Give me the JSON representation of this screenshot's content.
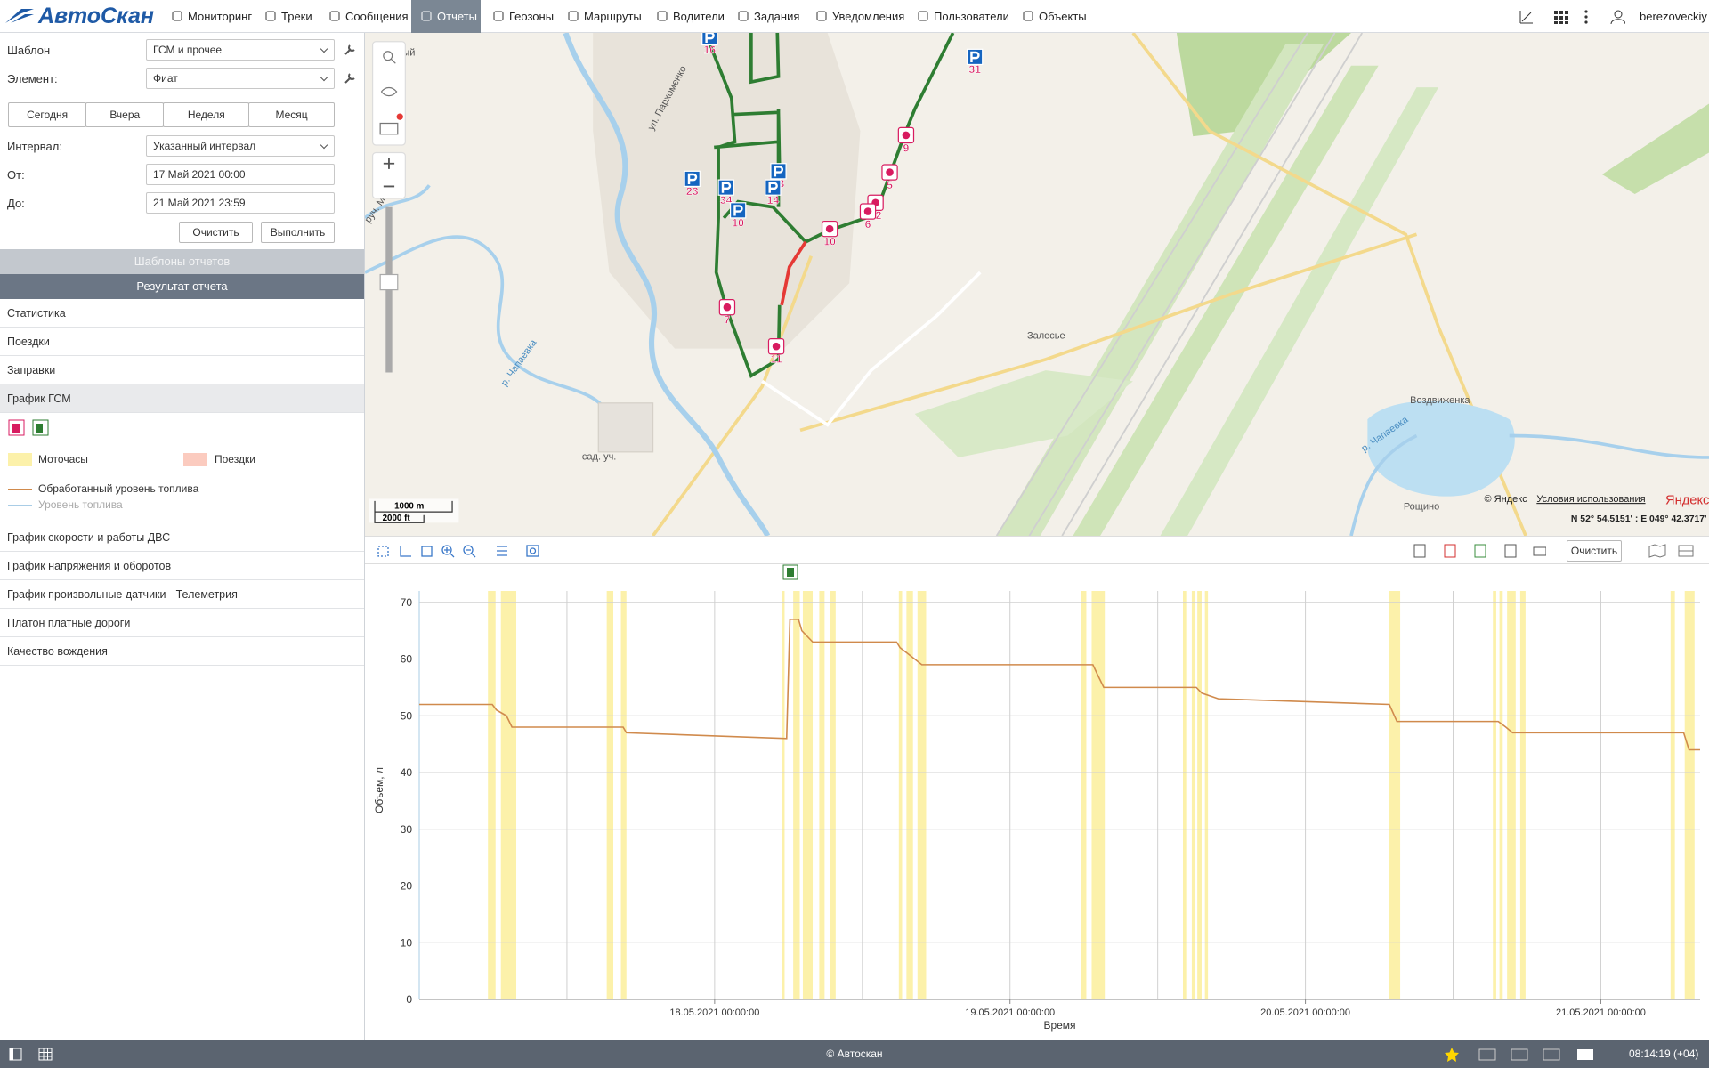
{
  "header": {
    "logo": "АвтоСкан",
    "nav": [
      "Мониторинг",
      "Треки",
      "Сообщения",
      "Отчеты",
      "Геозоны",
      "Маршруты",
      "Водители",
      "Задания",
      "Уведомления",
      "Пользователи",
      "Объекты"
    ],
    "active_nav": 3,
    "user": "berezoveckiy"
  },
  "report_form": {
    "template_label": "Шаблон",
    "template": "ГСМ и прочее",
    "element_label": "Элемент:",
    "element": "Фиат",
    "periods": [
      "Сегодня",
      "Вчера",
      "Неделя",
      "Месяц"
    ],
    "interval_label": "Интервал:",
    "interval": "Указанный интервал",
    "from_label": "От:",
    "from": "17 Май 2021 00:00",
    "to_label": "До:",
    "to": "21 Май 2021 23:59",
    "buttons": [
      "Очистить",
      "Выполнить"
    ]
  },
  "sections": {
    "templates": "Шаблоны отчетов",
    "result": "Результат отчета"
  },
  "result_items": [
    "Статистика",
    "Поездки",
    "Заправки",
    "График ГСМ"
  ],
  "active_item": 3,
  "more_items": [
    "График скорости и работы ДВС",
    "График напряжения и оборотов",
    "График произвольные датчики - Телеметрия",
    "Платон платные дороги",
    "Качество вождения"
  ],
  "map": {
    "labels": [
      "ячный",
      "ул. Пархоменко",
      "руч. Мокрый",
      "р. Чапаевка",
      "сад. уч.",
      "Залесье",
      "Воздвиженка",
      "р. Чапаевка",
      "Рощино"
    ],
    "markers": [
      "16",
      "31",
      "23",
      "34",
      "33",
      "14",
      "10",
      "9",
      "5",
      "12",
      "6",
      "10",
      "7",
      "11"
    ],
    "scale": [
      "1000 m",
      "2000 ft"
    ],
    "copyright": "© Яндекс",
    "terms": "Условия использования",
    "brand": "Яндекс",
    "coords": "N 52° 54.5151' : E 049° 42.3717'"
  },
  "chart_toolbar": {
    "clear": "Очистить"
  },
  "fuel_chart": {
    "type": "line",
    "ylabel": "Объем, л",
    "xlabel": "Время",
    "ylim": [
      0,
      72
    ],
    "yticks": [
      0,
      10,
      20,
      30,
      40,
      50,
      60,
      70
    ],
    "xlim": [
      "2021-05-17 00:00",
      "2021-05-21 08:04"
    ],
    "xticks": [
      {
        "value": "2021-05-17 12:00",
        "label": null
      },
      {
        "value": "2021-05-18 00:00",
        "label": "18.05.2021 00:00:00"
      },
      {
        "value": "2021-05-18 12:00",
        "label": null
      },
      {
        "value": "2021-05-19 00:00",
        "label": "19.05.2021 00:00:00"
      },
      {
        "value": "2021-05-19 12:00",
        "label": null
      },
      {
        "value": "2021-05-20 00:00",
        "label": "20.05.2021 00:00:00"
      },
      {
        "value": "2021-05-20 12:00",
        "label": null
      },
      {
        "value": "2021-05-21 00:00",
        "label": "21.05.2021 00:00:00"
      }
    ],
    "grid": true,
    "bands": [
      {
        "name": "Моточасы",
        "color": "#fcf1aa",
        "intervals": [
          [
            "2021-05-17 05:35",
            "2021-05-17 06:12"
          ],
          [
            "2021-05-17 06:38",
            "2021-05-17 07:53"
          ],
          [
            "2021-05-17 15:14",
            "2021-05-17 15:46"
          ],
          [
            "2021-05-17 16:23",
            "2021-05-17 16:50"
          ],
          [
            "2021-05-18 05:30",
            "2021-05-18 05:41"
          ],
          [
            "2021-05-18 06:23",
            "2021-05-18 06:55"
          ],
          [
            "2021-05-18 07:10",
            "2021-05-18 07:58"
          ],
          [
            "2021-05-18 08:30",
            "2021-05-18 08:56"
          ],
          [
            "2021-05-18 09:23",
            "2021-05-18 09:50"
          ],
          [
            "2021-05-18 14:58",
            "2021-05-18 15:14"
          ],
          [
            "2021-05-18 15:35",
            "2021-05-18 16:07"
          ],
          [
            "2021-05-18 16:29",
            "2021-05-18 17:11"
          ],
          [
            "2021-05-19 05:46",
            "2021-05-19 06:12"
          ],
          [
            "2021-05-19 06:38",
            "2021-05-19 07:42"
          ],
          [
            "2021-05-19 14:03",
            "2021-05-19 14:19"
          ],
          [
            "2021-05-19 14:46",
            "2021-05-19 15:02"
          ],
          [
            "2021-05-19 15:13",
            "2021-05-19 15:34"
          ],
          [
            "2021-05-19 15:50",
            "2021-05-19 16:05"
          ],
          [
            "2021-05-20 06:49",
            "2021-05-20 07:42"
          ],
          [
            "2021-05-20 15:14",
            "2021-05-20 15:30"
          ],
          [
            "2021-05-20 15:46",
            "2021-05-20 16:02"
          ],
          [
            "2021-05-20 16:23",
            "2021-05-20 17:05"
          ],
          [
            "2021-05-20 17:27",
            "2021-05-20 17:53"
          ],
          [
            "2021-05-21 05:40",
            "2021-05-21 06:01"
          ],
          [
            "2021-05-21 06:49",
            "2021-05-21 07:37"
          ]
        ]
      },
      {
        "name": "Поездки",
        "color": "#fbcbbf"
      }
    ],
    "series": [
      {
        "name": "Обработанный уровень топлива",
        "color": "#d08a4c",
        "x": [
          "2021-05-17 00:00",
          "2021-05-17 05:56",
          "2021-05-17 06:17",
          "2021-05-17 07:05",
          "2021-05-17 07:32",
          "2021-05-17 16:34",
          "2021-05-17 16:50",
          "2021-05-18 05:51",
          "2021-05-18 06:07",
          "2021-05-18 06:49",
          "2021-05-18 07:05",
          "2021-05-18 07:58",
          "2021-05-18 14:47",
          "2021-05-18 15:04",
          "2021-05-18 15:40",
          "2021-05-18 16:50",
          "2021-05-19 06:44",
          "2021-05-19 07:10",
          "2021-05-19 07:37",
          "2021-05-19 15:08",
          "2021-05-19 15:35",
          "2021-05-19 16:55",
          "2021-05-20 06:49",
          "2021-05-20 07:26",
          "2021-05-20 15:40",
          "2021-05-20 16:17",
          "2021-05-20 16:50",
          "2021-05-21 06:44",
          "2021-05-21 07:10",
          "2021-05-21 08:04"
        ],
        "values": [
          52,
          52,
          51,
          50,
          48,
          48,
          47,
          46,
          67,
          67,
          65,
          63,
          63,
          62,
          61,
          59,
          59,
          57,
          55,
          55,
          54,
          53,
          52,
          49,
          49,
          48,
          47,
          47,
          44,
          44
        ]
      },
      {
        "name": "Уровень топлива",
        "color": "#a9cde6"
      }
    ]
  },
  "footer": {
    "copyright": "© Автоскан",
    "time": "08:14:19 (+04)"
  }
}
